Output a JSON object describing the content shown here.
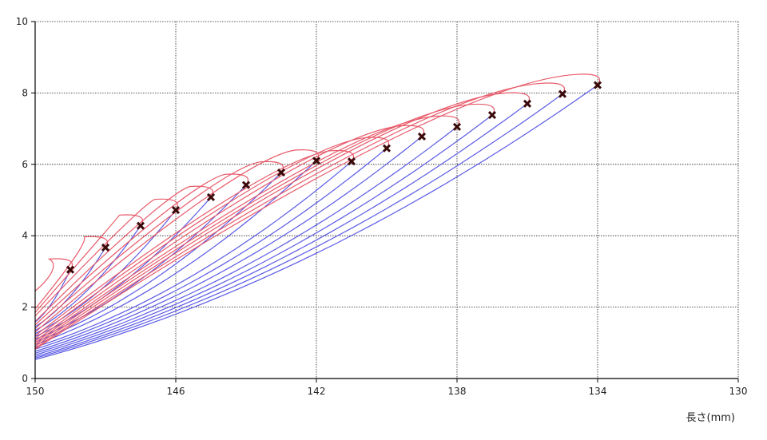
{
  "chart_data": {
    "type": "line",
    "xlabel": "長さ(mm)",
    "ylabel": "",
    "title": "",
    "xlim": [
      150,
      130
    ],
    "ylim": [
      0,
      10
    ],
    "x_reversed": true,
    "xticks": [
      "150",
      "146",
      "142",
      "138",
      "134",
      "130"
    ],
    "yticks": [
      "0",
      "2",
      "4",
      "6",
      "8",
      "10"
    ],
    "grid": true,
    "colors": {
      "compression": "#5a5ae6",
      "return": "#e85a6a",
      "marker": "#3a0a0a",
      "grid": "#222222"
    },
    "cycles": [
      {
        "peak_x": 149.0,
        "peak_y": 3.05,
        "end_y": 2.45,
        "base_y": 1.58
      },
      {
        "peak_x": 148.0,
        "peak_y": 3.67,
        "end_y": 1.95,
        "base_y": 1.45
      },
      {
        "peak_x": 147.0,
        "peak_y": 4.28,
        "end_y": 1.85,
        "base_y": 1.35
      },
      {
        "peak_x": 146.0,
        "peak_y": 4.72,
        "end_y": 1.75,
        "base_y": 1.26
      },
      {
        "peak_x": 145.0,
        "peak_y": 5.08,
        "end_y": 1.6,
        "base_y": 1.18
      },
      {
        "peak_x": 144.0,
        "peak_y": 5.42,
        "end_y": 1.5,
        "base_y": 1.1
      },
      {
        "peak_x": 143.0,
        "peak_y": 5.77,
        "end_y": 1.4,
        "base_y": 1.02
      },
      {
        "peak_x": 142.0,
        "peak_y": 6.1,
        "end_y": 1.3,
        "base_y": 0.95
      },
      {
        "peak_x": 141.0,
        "peak_y": 6.08,
        "end_y": 1.2,
        "base_y": 0.88
      },
      {
        "peak_x": 140.0,
        "peak_y": 6.45,
        "end_y": 1.12,
        "base_y": 0.82
      },
      {
        "peak_x": 139.0,
        "peak_y": 6.78,
        "end_y": 1.05,
        "base_y": 0.76
      },
      {
        "peak_x": 138.0,
        "peak_y": 7.05,
        "end_y": 1.0,
        "base_y": 0.71
      },
      {
        "peak_x": 137.0,
        "peak_y": 7.38,
        "end_y": 0.95,
        "base_y": 0.66
      },
      {
        "peak_x": 136.0,
        "peak_y": 7.7,
        "end_y": 0.9,
        "base_y": 0.61
      },
      {
        "peak_x": 135.0,
        "peak_y": 7.97,
        "end_y": 0.85,
        "base_y": 0.57
      },
      {
        "peak_x": 134.0,
        "peak_y": 8.22,
        "end_y": 0.82,
        "base_y": 0.53
      }
    ]
  }
}
